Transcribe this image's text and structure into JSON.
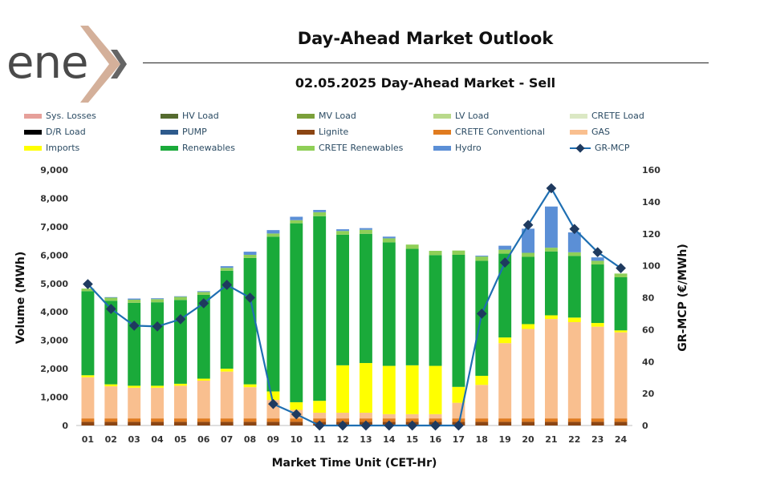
{
  "logo_text": "ene",
  "title": "Day-Ahead Market Outlook",
  "subtitle": "02.05.2025  Day-Ahead Market - Sell",
  "legend": [
    {
      "label": "Sys. Losses",
      "color": "#e6a09a",
      "kind": "box"
    },
    {
      "label": "HV Load",
      "color": "#556b2f",
      "kind": "box"
    },
    {
      "label": "MV Load",
      "color": "#7ba03a",
      "kind": "box"
    },
    {
      "label": "LV Load",
      "color": "#b9d98b",
      "kind": "box"
    },
    {
      "label": "CRETE Load",
      "color": "#dbe8c4",
      "kind": "box"
    },
    {
      "label": "D/R Load",
      "color": "#000000",
      "kind": "box"
    },
    {
      "label": "PUMP",
      "color": "#2e5a8c",
      "kind": "box"
    },
    {
      "label": "Lignite",
      "color": "#8b4513",
      "kind": "box"
    },
    {
      "label": "CRETE Conventional",
      "color": "#e07b1f",
      "kind": "box"
    },
    {
      "label": "GAS",
      "color": "#f9bf8f",
      "kind": "box"
    },
    {
      "label": "Imports",
      "color": "#ffff00",
      "kind": "box"
    },
    {
      "label": "Renewables",
      "color": "#1aaa3a",
      "kind": "box"
    },
    {
      "label": "CRETE Renewables",
      "color": "#8fcf57",
      "kind": "box"
    },
    {
      "label": "Hydro",
      "color": "#5b8fd6",
      "kind": "box"
    },
    {
      "label": "GR-MCP",
      "color": "#1f6fb2",
      "kind": "line"
    }
  ],
  "chart_data": {
    "type": "bar",
    "stacked": true,
    "xlabel": "Market Time Unit (CET-Hr)",
    "ylabel": "Volume (MWh)",
    "y2label": "GR-MCP (€/MWh)",
    "ylim": [
      0,
      9000
    ],
    "y2lim": [
      0,
      160
    ],
    "yticks": [
      "0",
      "1,000",
      "2,000",
      "3,000",
      "4,000",
      "5,000",
      "6,000",
      "7,000",
      "8,000",
      "9,000"
    ],
    "y2ticks": [
      "0",
      "20",
      "40",
      "60",
      "80",
      "100",
      "120",
      "140",
      "160"
    ],
    "categories": [
      "01",
      "02",
      "03",
      "04",
      "05",
      "06",
      "07",
      "08",
      "09",
      "10",
      "11",
      "12",
      "13",
      "14",
      "15",
      "16",
      "17",
      "18",
      "19",
      "20",
      "21",
      "22",
      "23",
      "24"
    ],
    "series": [
      {
        "name": "Lignite",
        "color": "#8b4513",
        "values": [
          130,
          130,
          130,
          130,
          130,
          130,
          130,
          130,
          130,
          130,
          130,
          130,
          130,
          130,
          130,
          130,
          130,
          130,
          130,
          130,
          130,
          130,
          130,
          130
        ]
      },
      {
        "name": "CRETE Conventional",
        "color": "#e07b1f",
        "values": [
          120,
          120,
          120,
          120,
          120,
          120,
          120,
          120,
          120,
          120,
          120,
          120,
          120,
          120,
          120,
          120,
          120,
          120,
          120,
          120,
          120,
          120,
          120,
          120
        ]
      },
      {
        "name": "GAS",
        "color": "#f9bf8f",
        "values": [
          1450,
          1130,
          1080,
          1080,
          1150,
          1330,
          1650,
          1100,
          650,
          300,
          200,
          200,
          200,
          150,
          150,
          150,
          550,
          1180,
          2650,
          3150,
          3500,
          3390,
          3230,
          3030
        ]
      },
      {
        "name": "Imports",
        "color": "#ffff00",
        "values": [
          70,
          70,
          70,
          70,
          70,
          70,
          100,
          100,
          300,
          270,
          420,
          1670,
          1750,
          1700,
          1720,
          1700,
          560,
          320,
          200,
          170,
          130,
          160,
          130,
          70
        ]
      },
      {
        "name": "Renewables",
        "color": "#1aaa3a",
        "values": [
          2960,
          2940,
          2920,
          2940,
          2950,
          2950,
          3450,
          4450,
          5450,
          6300,
          6500,
          4600,
          4550,
          4350,
          4100,
          3900,
          4650,
          4050,
          2950,
          2370,
          2250,
          2170,
          2060,
          1870
        ]
      },
      {
        "name": "CRETE Renewables",
        "color": "#8fcf57",
        "values": [
          90,
          110,
          110,
          110,
          110,
          100,
          100,
          110,
          110,
          110,
          140,
          130,
          140,
          140,
          150,
          150,
          150,
          150,
          140,
          140,
          130,
          130,
          130,
          130
        ]
      },
      {
        "name": "Hydro",
        "color": "#5b8fd6",
        "values": [
          0,
          20,
          40,
          30,
          20,
          30,
          60,
          110,
          120,
          120,
          80,
          60,
          60,
          60,
          0,
          0,
          0,
          30,
          140,
          850,
          1450,
          700,
          120,
          0
        ]
      },
      {
        "name": "GR-MCP",
        "color": "#1f6fb2",
        "kind": "line",
        "axis": "right",
        "values": [
          88.5,
          73,
          62.5,
          62,
          66.5,
          76.5,
          88,
          80,
          13.5,
          7,
          0,
          0,
          0,
          0,
          0,
          0,
          0,
          70,
          102,
          125.5,
          148.5,
          123,
          108.5,
          98.5
        ]
      }
    ]
  }
}
